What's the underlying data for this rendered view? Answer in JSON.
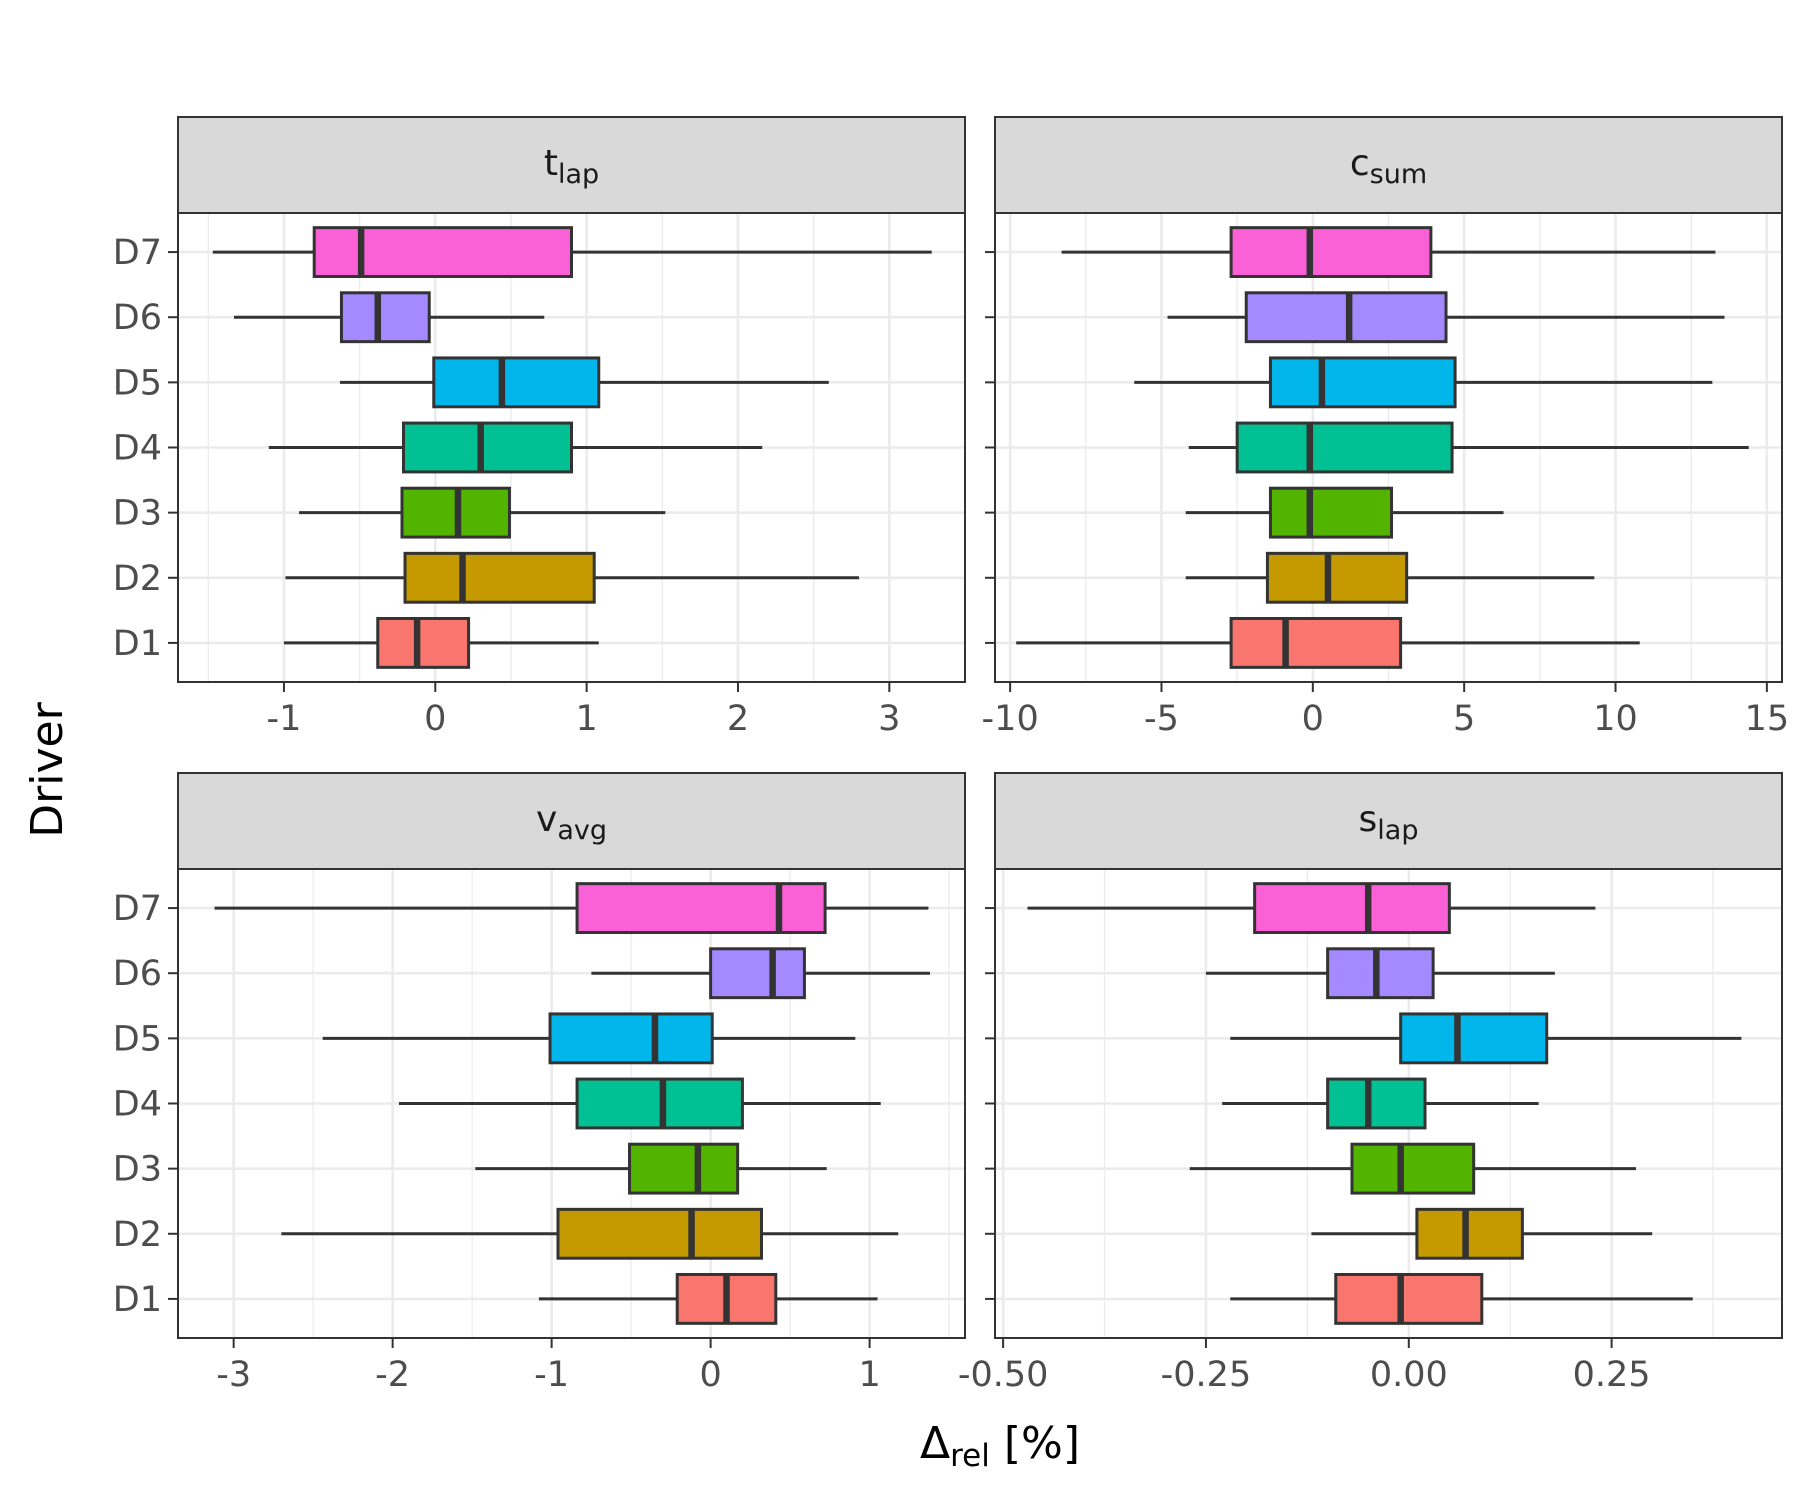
{
  "figure": {
    "y_title": "Driver",
    "x_title_main": "Δ",
    "x_title_sub": "rel",
    "x_title_unit": " [%]"
  },
  "colors": {
    "D1": "#F8766D",
    "D2": "#C49A00",
    "D3": "#53B400",
    "D4": "#00C094",
    "D5": "#00B6EB",
    "D6": "#A58AFF",
    "D7": "#FB61D7"
  },
  "chart_data": [
    {
      "type": "boxplot",
      "orientation": "horizontal",
      "title_main": "t",
      "title_sub": "lap",
      "categories": [
        "D1",
        "D2",
        "D3",
        "D4",
        "D5",
        "D6",
        "D7"
      ],
      "xlim": [
        -1.7,
        3.5
      ],
      "xticks": [
        -1,
        0,
        1,
        2,
        3
      ],
      "xtick_labels": [
        "-1",
        "0",
        "1",
        "2",
        "3"
      ],
      "boxes": [
        {
          "driver": "D1",
          "whislo": -1.0,
          "q1": -0.38,
          "med": -0.12,
          "q3": 0.22,
          "whishi": 1.08
        },
        {
          "driver": "D2",
          "whislo": -0.99,
          "q1": -0.2,
          "med": 0.18,
          "q3": 1.05,
          "whishi": 2.8
        },
        {
          "driver": "D3",
          "whislo": -0.9,
          "q1": -0.22,
          "med": 0.15,
          "q3": 0.49,
          "whishi": 1.52
        },
        {
          "driver": "D4",
          "whislo": -1.1,
          "q1": -0.21,
          "med": 0.3,
          "q3": 0.9,
          "whishi": 2.16
        },
        {
          "driver": "D5",
          "whislo": -0.63,
          "q1": -0.01,
          "med": 0.44,
          "q3": 1.08,
          "whishi": 2.6
        },
        {
          "driver": "D6",
          "whislo": -1.33,
          "q1": -0.62,
          "med": -0.38,
          "q3": -0.04,
          "whishi": 0.72
        },
        {
          "driver": "D7",
          "whislo": -1.47,
          "q1": -0.8,
          "med": -0.49,
          "q3": 0.9,
          "whishi": 3.28
        }
      ]
    },
    {
      "type": "boxplot",
      "orientation": "horizontal",
      "title_main": "c",
      "title_sub": "sum",
      "categories": [
        "D1",
        "D2",
        "D3",
        "D4",
        "D5",
        "D6",
        "D7"
      ],
      "xlim": [
        -10.5,
        15.5
      ],
      "xticks": [
        -10,
        -5,
        0,
        5,
        10,
        15
      ],
      "xtick_labels": [
        "-10",
        "-5",
        "0",
        "5",
        "10",
        "15"
      ],
      "boxes": [
        {
          "driver": "D1",
          "whislo": -9.8,
          "q1": -2.7,
          "med": -0.9,
          "q3": 2.9,
          "whishi": 10.8
        },
        {
          "driver": "D2",
          "whislo": -4.2,
          "q1": -1.5,
          "med": 0.5,
          "q3": 3.1,
          "whishi": 9.3
        },
        {
          "driver": "D3",
          "whislo": -4.2,
          "q1": -1.4,
          "med": -0.1,
          "q3": 2.6,
          "whishi": 6.3
        },
        {
          "driver": "D4",
          "whislo": -4.1,
          "q1": -2.5,
          "med": -0.1,
          "q3": 4.6,
          "whishi": 14.4
        },
        {
          "driver": "D5",
          "whislo": -5.9,
          "q1": -1.4,
          "med": 0.3,
          "q3": 4.7,
          "whishi": 13.2
        },
        {
          "driver": "D6",
          "whislo": -4.8,
          "q1": -2.2,
          "med": 1.2,
          "q3": 4.4,
          "whishi": 13.6
        },
        {
          "driver": "D7",
          "whislo": -8.3,
          "q1": -2.7,
          "med": -0.1,
          "q3": 3.9,
          "whishi": 13.3
        }
      ]
    },
    {
      "type": "boxplot",
      "orientation": "horizontal",
      "title_main": "v",
      "title_sub": "avg",
      "categories": [
        "D1",
        "D2",
        "D3",
        "D4",
        "D5",
        "D6",
        "D7"
      ],
      "xlim": [
        -3.35,
        1.6
      ],
      "xticks": [
        -3,
        -2,
        -1,
        0,
        1
      ],
      "xtick_labels": [
        "-3",
        "-2",
        "-1",
        "0",
        "1"
      ],
      "boxes": [
        {
          "driver": "D1",
          "whislo": -1.08,
          "q1": -0.21,
          "med": 0.1,
          "q3": 0.41,
          "whishi": 1.05
        },
        {
          "driver": "D2",
          "whislo": -2.7,
          "q1": -0.96,
          "med": -0.12,
          "q3": 0.32,
          "whishi": 1.18
        },
        {
          "driver": "D3",
          "whislo": -1.48,
          "q1": -0.51,
          "med": -0.08,
          "q3": 0.17,
          "whishi": 0.73
        },
        {
          "driver": "D4",
          "whislo": -1.96,
          "q1": -0.84,
          "med": -0.3,
          "q3": 0.2,
          "whishi": 1.07
        },
        {
          "driver": "D5",
          "whislo": -2.44,
          "q1": -1.01,
          "med": -0.35,
          "q3": 0.01,
          "whishi": 0.91
        },
        {
          "driver": "D6",
          "whislo": -0.75,
          "q1": 0.0,
          "med": 0.39,
          "q3": 0.59,
          "whishi": 1.38
        },
        {
          "driver": "D7",
          "whislo": -3.12,
          "q1": -0.84,
          "med": 0.43,
          "q3": 0.72,
          "whishi": 1.37
        }
      ]
    },
    {
      "type": "boxplot",
      "orientation": "horizontal",
      "title_main": "s",
      "title_sub": "lap",
      "categories": [
        "D1",
        "D2",
        "D3",
        "D4",
        "D5",
        "D6",
        "D7"
      ],
      "xlim": [
        -0.51,
        0.46
      ],
      "xticks": [
        -0.5,
        -0.25,
        0.0,
        0.25
      ],
      "xtick_labels": [
        "-0.50",
        "-0.25",
        "0.00",
        "0.25"
      ],
      "boxes": [
        {
          "driver": "D1",
          "whislo": -0.22,
          "q1": -0.09,
          "med": -0.01,
          "q3": 0.09,
          "whishi": 0.35
        },
        {
          "driver": "D2",
          "whislo": -0.12,
          "q1": 0.01,
          "med": 0.07,
          "q3": 0.14,
          "whishi": 0.3
        },
        {
          "driver": "D3",
          "whislo": -0.27,
          "q1": -0.07,
          "med": -0.01,
          "q3": 0.08,
          "whishi": 0.28
        },
        {
          "driver": "D4",
          "whislo": -0.23,
          "q1": -0.1,
          "med": -0.05,
          "q3": 0.02,
          "whishi": 0.16
        },
        {
          "driver": "D5",
          "whislo": -0.22,
          "q1": -0.01,
          "med": 0.06,
          "q3": 0.17,
          "whishi": 0.41
        },
        {
          "driver": "D6",
          "whislo": -0.25,
          "q1": -0.1,
          "med": -0.04,
          "q3": 0.03,
          "whishi": 0.18
        },
        {
          "driver": "D7",
          "whislo": -0.47,
          "q1": -0.19,
          "med": -0.05,
          "q3": 0.05,
          "whishi": 0.23
        }
      ]
    }
  ]
}
